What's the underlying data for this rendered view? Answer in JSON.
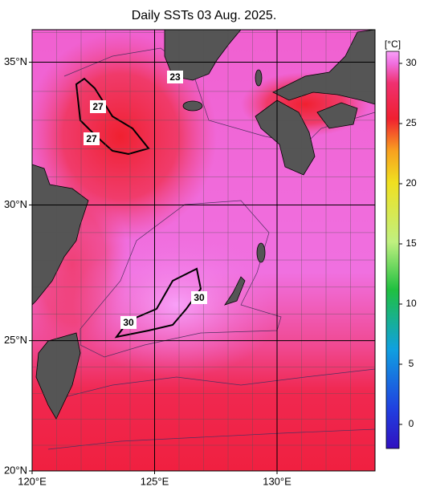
{
  "title": "Daily SSTs 03 Aug. 2025.",
  "map": {
    "lon_lim": [
      120,
      134
    ],
    "lat_lim": [
      20,
      36.1
    ],
    "grid_step": 1,
    "lat_ticks": [
      {
        "value": 35,
        "label": "35°N"
      },
      {
        "value": 30,
        "label": "30°N"
      },
      {
        "value": 25,
        "label": "25°N"
      },
      {
        "value": 20,
        "label": "20°N"
      }
    ],
    "lon_ticks": [
      {
        "value": 120,
        "label": "120°E"
      },
      {
        "value": 125,
        "label": "125°E"
      },
      {
        "value": 130,
        "label": "130°E"
      }
    ],
    "contour_labels": [
      "27",
      "27",
      "23",
      "30",
      "30"
    ]
  },
  "colorbar": {
    "unit": "[°C]",
    "lim": [
      -2,
      31
    ],
    "ticks": [
      0,
      5,
      10,
      15,
      20,
      25,
      30
    ]
  }
}
